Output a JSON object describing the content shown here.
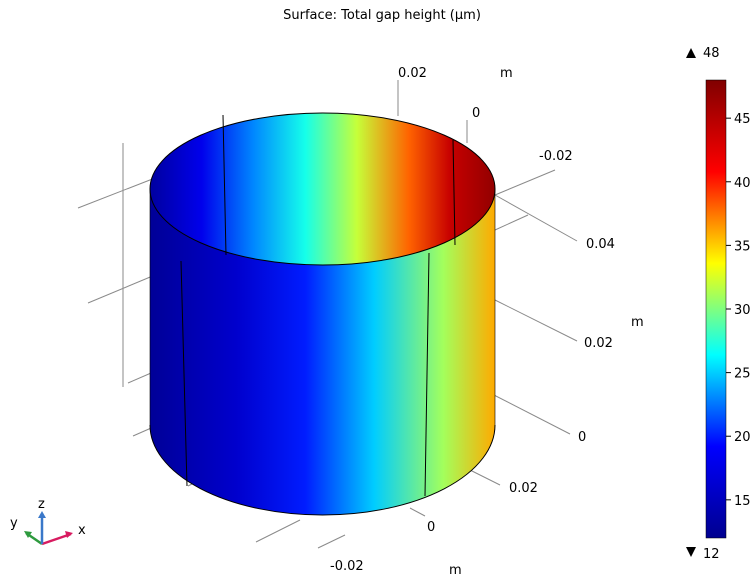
{
  "chart_data": {
    "type": "surface-3d",
    "title": "Surface: Total gap height (µm)",
    "colorbar": {
      "min_label": "12",
      "max_label": "48",
      "min": 12,
      "max": 48,
      "ticks": [
        15,
        20,
        25,
        30,
        35,
        40,
        45
      ],
      "tick_labels": [
        "15",
        "20",
        "25",
        "30",
        "35",
        "40",
        "45"
      ],
      "colormap": [
        "#00008f",
        "#0000ff",
        "#00ffff",
        "#ffff00",
        "#ff0000",
        "#800000"
      ]
    },
    "surface_values": [
      {
        "u": 0.0,
        "v": 13
      },
      {
        "u": 0.15,
        "v": 18
      },
      {
        "u": 0.3,
        "v": 23
      },
      {
        "u": 0.45,
        "v": 27
      },
      {
        "u": 0.6,
        "v": 32
      },
      {
        "u": 0.75,
        "v": 38
      },
      {
        "u": 0.87,
        "v": 44
      },
      {
        "u": 1.0,
        "v": 47
      }
    ],
    "axes": {
      "x_tick_labels": [
        "-0.02",
        "0",
        "0.02"
      ],
      "x_unit": "m",
      "y_tick_labels": [
        "-0.02",
        "0",
        "0.02"
      ],
      "y_unit": "m",
      "z_tick_labels": [
        "0",
        "0.02",
        "0.04"
      ],
      "z_unit": "m"
    },
    "grid": true
  },
  "triad": {
    "x": "x",
    "y": "y",
    "z": "z"
  },
  "colors": {
    "triad_x": "#d81b60",
    "triad_y": "#2e9a3e",
    "triad_z": "#3a78c9",
    "grid": "#8a8a8a"
  }
}
